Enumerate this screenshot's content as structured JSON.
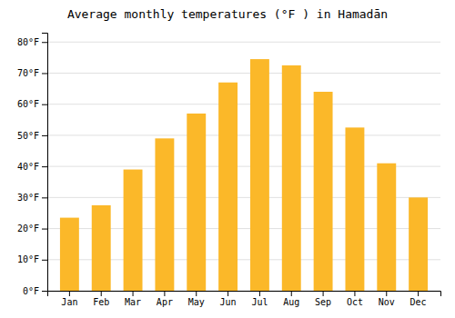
{
  "chart_data": {
    "type": "bar",
    "title": "Average monthly temperatures (°F ) in Hamadān",
    "categories": [
      "Jan",
      "Feb",
      "Mar",
      "Apr",
      "May",
      "Jun",
      "Jul",
      "Aug",
      "Sep",
      "Oct",
      "Nov",
      "Dec"
    ],
    "values": [
      23.5,
      27.5,
      39.0,
      49.0,
      57.0,
      67.0,
      74.5,
      72.5,
      64.0,
      52.5,
      41.0,
      30.0
    ],
    "color": "#FBB829",
    "ylim": [
      0,
      83
    ],
    "yticks": [
      {
        "value": 0,
        "label": "0°F"
      },
      {
        "value": 10,
        "label": "10°F"
      },
      {
        "value": 20,
        "label": "20°F"
      },
      {
        "value": 30,
        "label": "30°F"
      },
      {
        "value": 40,
        "label": "40°F"
      },
      {
        "value": 50,
        "label": "50°F"
      },
      {
        "value": 60,
        "label": "60°F"
      },
      {
        "value": 70,
        "label": "70°F"
      },
      {
        "value": 80,
        "label": "80°F"
      }
    ],
    "grid": true
  }
}
